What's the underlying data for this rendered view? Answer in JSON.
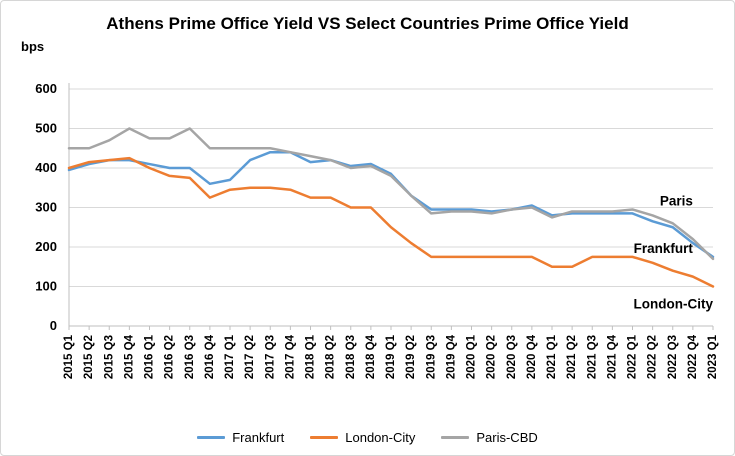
{
  "title": "Athens Prime Office Yield VS Select Countries Prime Office Yield",
  "y_axis_unit": "bps",
  "chart_data": {
    "type": "line",
    "title": "Athens Prime Office Yield VS Select Countries Prime Office Yield",
    "xlabel": "",
    "ylabel": "bps",
    "ylim": [
      0,
      600
    ],
    "ytick_step": 100,
    "grid": true,
    "legend_position": "bottom",
    "grid_color": "#d9d9d9",
    "axis_color": "#bfbfbf",
    "categories": [
      "2015 Q1",
      "2015 Q2",
      "2015 Q3",
      "2015 Q4",
      "2016 Q1",
      "2016 Q2",
      "2016 Q3",
      "2016 Q4",
      "2017 Q1",
      "2017 Q2",
      "2017 Q3",
      "2017 Q4",
      "2018 Q1",
      "2018 Q2",
      "2018 Q3",
      "2018 Q4",
      "2019 Q1",
      "2019 Q2",
      "2019 Q3",
      "2019 Q4",
      "2020 Q1",
      "2020 Q2",
      "2020 Q3",
      "2020 Q4",
      "2021 Q1",
      "2021 Q2",
      "2021 Q3",
      "2021 Q4",
      "2022 Q1",
      "2022 Q2",
      "2022 Q3",
      "2022 Q4",
      "2023 Q1"
    ],
    "series": [
      {
        "name": "Frankfurt",
        "color": "#5B9BD5",
        "values": [
          395,
          410,
          420,
          420,
          410,
          400,
          400,
          360,
          370,
          420,
          440,
          440,
          415,
          420,
          405,
          410,
          385,
          330,
          295,
          295,
          295,
          290,
          295,
          305,
          280,
          285,
          285,
          285,
          285,
          265,
          250,
          210,
          175
        ]
      },
      {
        "name": "London-City",
        "color": "#ED7D31",
        "values": [
          400,
          415,
          420,
          425,
          400,
          380,
          375,
          325,
          345,
          350,
          350,
          345,
          325,
          325,
          300,
          300,
          250,
          210,
          175,
          175,
          175,
          175,
          175,
          175,
          150,
          150,
          175,
          175,
          175,
          160,
          140,
          125,
          100
        ]
      },
      {
        "name": "Paris-CBD",
        "color": "#A5A5A5",
        "values": [
          450,
          450,
          470,
          500,
          475,
          475,
          500,
          450,
          450,
          450,
          450,
          440,
          430,
          420,
          400,
          405,
          380,
          330,
          285,
          290,
          290,
          285,
          295,
          300,
          275,
          290,
          290,
          290,
          295,
          280,
          260,
          220,
          170
        ]
      }
    ],
    "annotations": [
      {
        "label": "Paris",
        "x_index": 31,
        "y_value": 315,
        "anchor": "end"
      },
      {
        "label": "Frankfurt",
        "x_index": 31,
        "y_value": 195,
        "anchor": "end"
      },
      {
        "label": "London-City",
        "x_index": 32,
        "y_value": 55,
        "anchor": "end"
      }
    ]
  },
  "legend": {
    "items": [
      "Frankfurt",
      "London-City",
      "Paris-CBD"
    ]
  }
}
